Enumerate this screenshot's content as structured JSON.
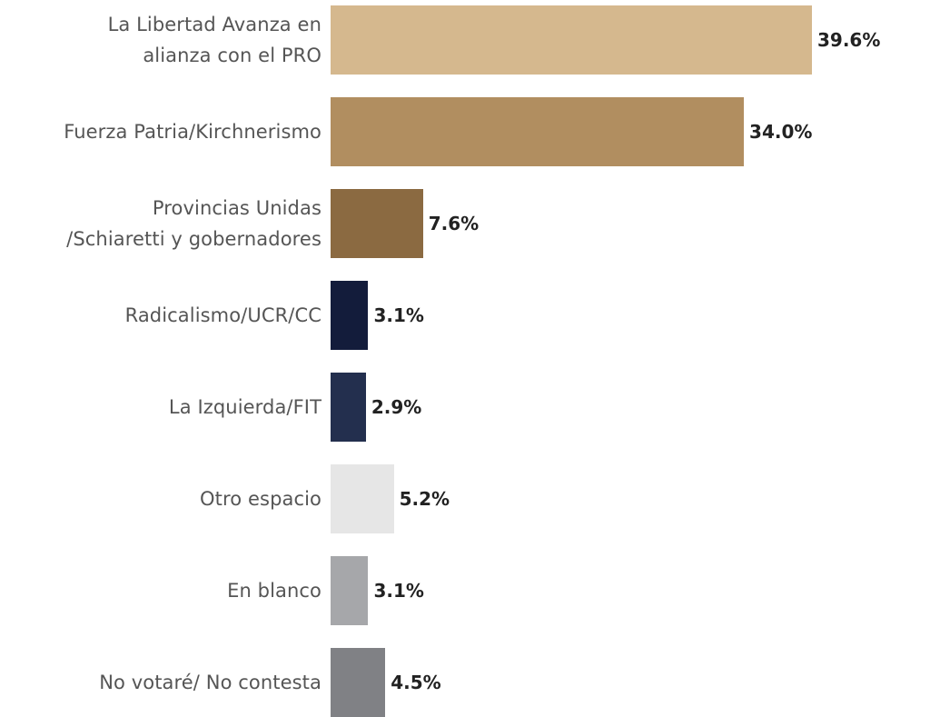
{
  "chart_data": {
    "type": "bar",
    "orientation": "horizontal",
    "title": "",
    "xlabel": "",
    "ylabel": "",
    "grid": false,
    "xlim": [
      0,
      39.6
    ],
    "categories": [
      "La Libertad Avanza en alianza con el PRO",
      "Fuerza Patria/Kirchnerismo",
      "Provincias Unidas /Schiaretti y gobernadores",
      "Radicalismo/UCR/CC",
      "La Izquierda/FIT",
      "Otro espacio",
      "En blanco",
      "No votaré/ No contesta"
    ],
    "label_lines": [
      [
        "La Libertad Avanza en",
        "alianza con el PRO"
      ],
      [
        "Fuerza Patria/Kirchnerismo"
      ],
      [
        "Provincias Unidas",
        "/Schiaretti y gobernadores"
      ],
      [
        "Radicalismo/UCR/CC"
      ],
      [
        "La Izquierda/FIT"
      ],
      [
        "Otro espacio"
      ],
      [
        "En blanco"
      ],
      [
        "No votaré/ No contesta"
      ]
    ],
    "values": [
      39.6,
      34.0,
      7.6,
      3.1,
      2.9,
      5.2,
      3.1,
      4.5
    ],
    "value_labels": [
      "39.6%",
      "34.0%",
      "7.6%",
      "3.1%",
      "2.9%",
      "5.2%",
      "3.1%",
      "4.5%"
    ],
    "colors": [
      "#D5B88E",
      "#B18E60",
      "#8B6A41",
      "#131C3B",
      "#232F4E",
      "#E6E6E6",
      "#A6A7AA",
      "#808185"
    ]
  }
}
